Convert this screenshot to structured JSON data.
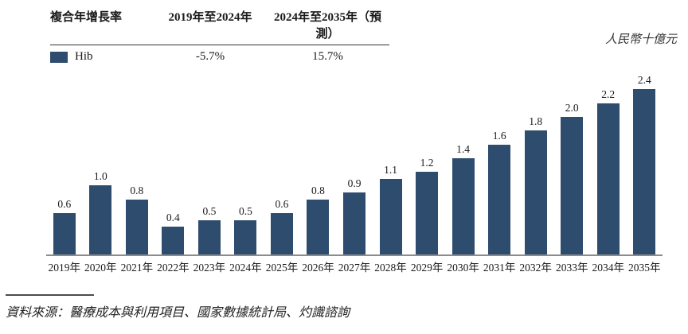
{
  "header": {
    "row_label": "複合年增長率",
    "period1_label": "2019年至2024年",
    "period2_label": "2024年至2035年（預測）",
    "legend": {
      "series_name": "Hib",
      "cagr_2019_2024": "-5.7%",
      "cagr_2024_2035": "15.7%"
    },
    "unit_label": "人民幣十億元"
  },
  "footer": {
    "source": "資料來源：醫療成本與利用項目、國家數據統計局、灼識諮詢"
  },
  "colors": {
    "bar": "#2e4c6e",
    "axis": "#8c8c8c"
  },
  "chart_data": {
    "type": "bar",
    "title": "",
    "xlabel": "",
    "ylabel": "人民幣十億元",
    "series_name": "Hib",
    "categories": [
      "2019年",
      "2020年",
      "2021年",
      "2022年",
      "2023年",
      "2024年",
      "2025年",
      "2026年",
      "2027年",
      "2028年",
      "2029年",
      "2030年",
      "2031年",
      "2032年",
      "2033年",
      "2034年",
      "2035年"
    ],
    "values": [
      0.6,
      1.0,
      0.8,
      0.4,
      0.5,
      0.5,
      0.6,
      0.8,
      0.9,
      1.1,
      1.2,
      1.4,
      1.6,
      1.8,
      2.0,
      2.2,
      2.4
    ],
    "ylim": [
      0,
      2.6
    ],
    "grid": false,
    "legend_position": "top-left",
    "annotations": {
      "cagr_2019_2024": "-5.7%",
      "cagr_2024_2035": "15.7%"
    }
  }
}
